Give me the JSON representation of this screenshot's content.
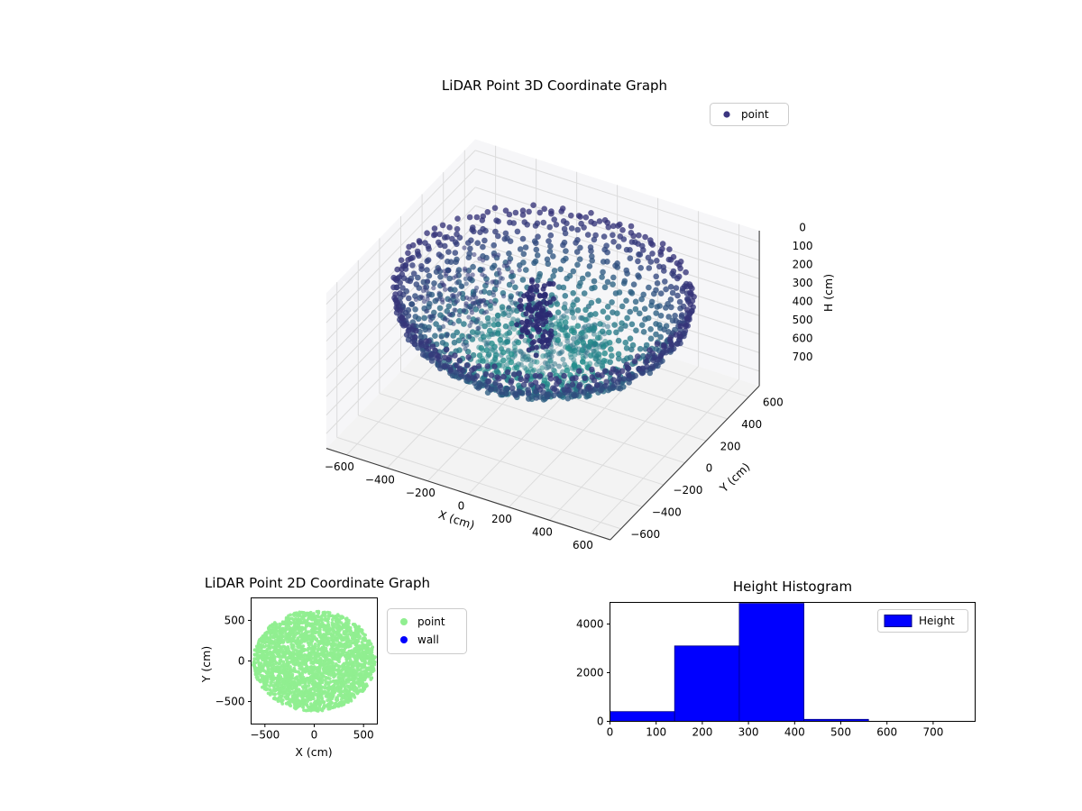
{
  "chart_data": [
    {
      "type": "scatter",
      "projection": "3d",
      "title": "LiDAR Point 3D Coordinate Graph",
      "xlabel": "X (cm)",
      "ylabel": "Y (cm)",
      "zlabel": "H (cm)",
      "legend_label": "point",
      "legend_position": "upper right outside axes",
      "xticks": [
        -600,
        -400,
        -200,
        0,
        200,
        400,
        600
      ],
      "yticks": [
        600,
        400,
        200,
        0,
        -200,
        -400,
        -600
      ],
      "zticks": [
        0,
        100,
        200,
        300,
        400,
        500,
        600,
        700
      ],
      "xlim": [
        -700,
        700
      ],
      "ylim": [
        -700,
        700
      ],
      "zlim": [
        0,
        700
      ],
      "z_axis_inverted": true,
      "marker_color": "#3b3580",
      "color_edge": "#363379",
      "color_center": "#21918c",
      "description": "Bowl/dome shaped LiDAR point cloud made of concentric scan rings, radius about 650 cm, heights mostly 100-460 cm; dark navy points on the outer rim grading to teal near the center; scattered noise points left of center and a dark vertical streak near the middle.",
      "dome": {
        "radius_cm": 650,
        "h_min": 100,
        "h_max": 460,
        "rings": 26
      }
    },
    {
      "type": "scatter",
      "title": "LiDAR Point 2D Coordinate Graph",
      "xlabel": "X (cm)",
      "ylabel": "Y (cm)",
      "xticks": [
        -500,
        0,
        500
      ],
      "yticks": [
        500,
        0,
        -500
      ],
      "xlim": [
        -640,
        640
      ],
      "ylim": [
        -777,
        777
      ],
      "legend": [
        {
          "label": "point",
          "color": "#90ee90"
        },
        {
          "label": "wall",
          "color": "#0000ff"
        }
      ],
      "disc": {
        "center_x": 0,
        "center_y": 0,
        "radius_cm": 620
      },
      "description": "Top-down 2D projection: a solid light-green disc of LiDAR points about 620 cm in radius centered at the origin; blue wall points are not visible."
    },
    {
      "type": "bar",
      "title": "Height Histogram",
      "legend_label": "Height",
      "bar_color": "#0000ff",
      "bar_edge_color": "#000080",
      "bin_edges": [
        0,
        140,
        280,
        420,
        560
      ],
      "counts": [
        400,
        3100,
        4850,
        80
      ],
      "xticks": [
        0,
        100,
        200,
        300,
        400,
        500,
        600,
        700
      ],
      "yticks": [
        0,
        2000,
        4000
      ],
      "xlim": [
        0,
        791
      ],
      "ylim": [
        0,
        4889
      ]
    }
  ]
}
